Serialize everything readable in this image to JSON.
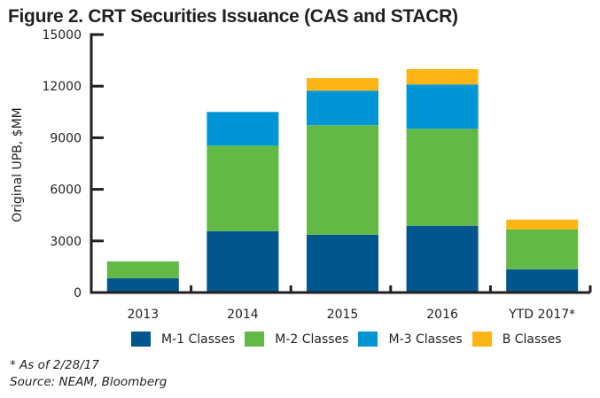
{
  "figure": {
    "title": "Figure 2. CRT Securities Issuance (CAS and STACR)",
    "footnote": "* As of 2/28/17",
    "source": "Source: NEAM, Bloomberg"
  },
  "chart_data": {
    "type": "bar",
    "stacked": true,
    "title": "Figure 2. CRT Securities Issuance (CAS and STACR)",
    "xlabel": "",
    "ylabel": "Original UPB, $MM",
    "ylim": [
      0,
      15000
    ],
    "yticks": [
      "0",
      "3000",
      "6000",
      "9000",
      "12000",
      "15000"
    ],
    "ytick_values": [
      0,
      3000,
      6000,
      9000,
      12000,
      15000
    ],
    "grid": false,
    "legend_position": "bottom",
    "categories": [
      "2013",
      "2014",
      "2015",
      "2016",
      "YTD 2017*"
    ],
    "series": [
      {
        "name": "M-1 Classes",
        "color": "#00568d",
        "values": [
          830,
          3570,
          3360,
          3880,
          1350
        ]
      },
      {
        "name": "M-2 Classes",
        "color": "#62b946",
        "values": [
          980,
          4970,
          6370,
          5640,
          2320
        ]
      },
      {
        "name": "M-3 Classes",
        "color": "#0096d6",
        "values": [
          0,
          1960,
          2010,
          2580,
          0
        ]
      },
      {
        "name": "B Classes",
        "color": "#fdb515",
        "values": [
          0,
          0,
          730,
          890,
          570
        ]
      }
    ]
  }
}
